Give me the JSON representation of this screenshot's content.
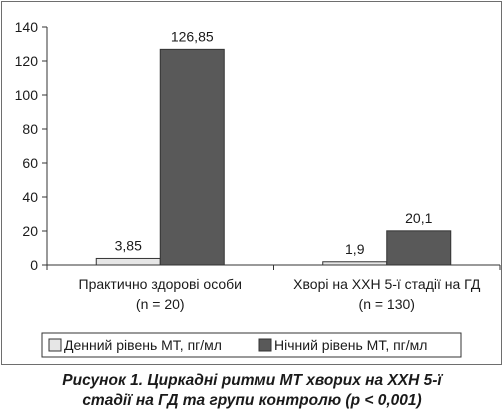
{
  "chart_data": {
    "type": "bar",
    "categories": [
      [
        "Практично здорові особи",
        "(n = 20)"
      ],
      [
        "Хворі на ХХН 5-ї стадії на ГД",
        "(n = 130)"
      ]
    ],
    "series": [
      {
        "name": "Денний рівень МТ, пг/мл",
        "values": [
          3.85,
          1.9
        ],
        "labels": [
          "3,85",
          "1,9"
        ],
        "color": "#e6e6e6"
      },
      {
        "name": "Нічний рівень МТ, пг/мл",
        "values": [
          126.85,
          20.1
        ],
        "labels": [
          "126,85",
          "20,1"
        ],
        "color": "#595959"
      }
    ],
    "yticks": [
      0,
      20,
      40,
      60,
      80,
      100,
      120,
      140
    ],
    "ylim": [
      0,
      140
    ],
    "grid": false,
    "legend_position": "bottom"
  },
  "caption": {
    "line1": "Рисунок 1. Циркадні ритми МТ хворих на ХХН 5-ї",
    "line2": "стадії на ГД та групи контролю (p < 0,001)"
  }
}
